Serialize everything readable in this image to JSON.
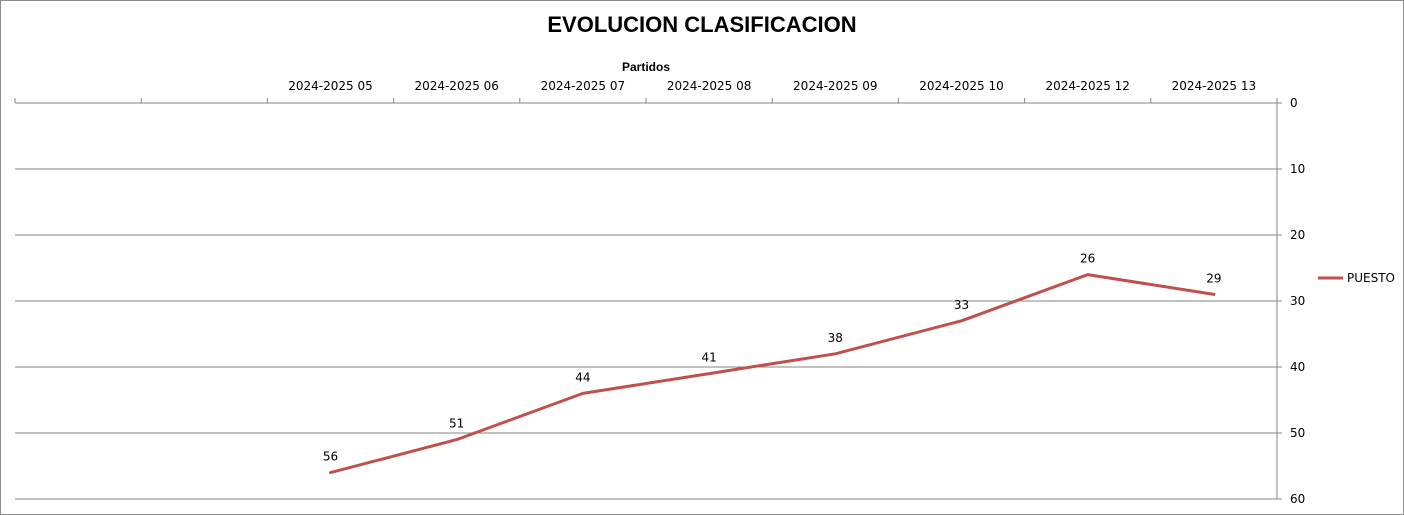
{
  "chart_data": {
    "type": "line",
    "title": "EVOLUCION CLASIFICACION",
    "xlabel": "Partidos",
    "ylabel": "",
    "categories": [
      "",
      "",
      "2024-2025 05",
      "2024-2025 06",
      "2024-2025 07",
      "2024-2025 08",
      "2024-2025 09",
      "2024-2025 10",
      "2024-2025 12",
      "2024-2025 13"
    ],
    "series": [
      {
        "name": "PUESTO",
        "values": [
          null,
          null,
          56,
          51,
          44,
          41,
          38,
          33,
          26,
          29
        ],
        "color": "#c0504d"
      }
    ],
    "ylim": [
      0,
      60
    ],
    "y_ticks": [
      0,
      10,
      20,
      30,
      40,
      50,
      60
    ],
    "y_reversed": true,
    "y_axis_side": "right",
    "x_axis_side": "top",
    "grid": "horizontal",
    "legend": "right",
    "data_labels": true
  }
}
